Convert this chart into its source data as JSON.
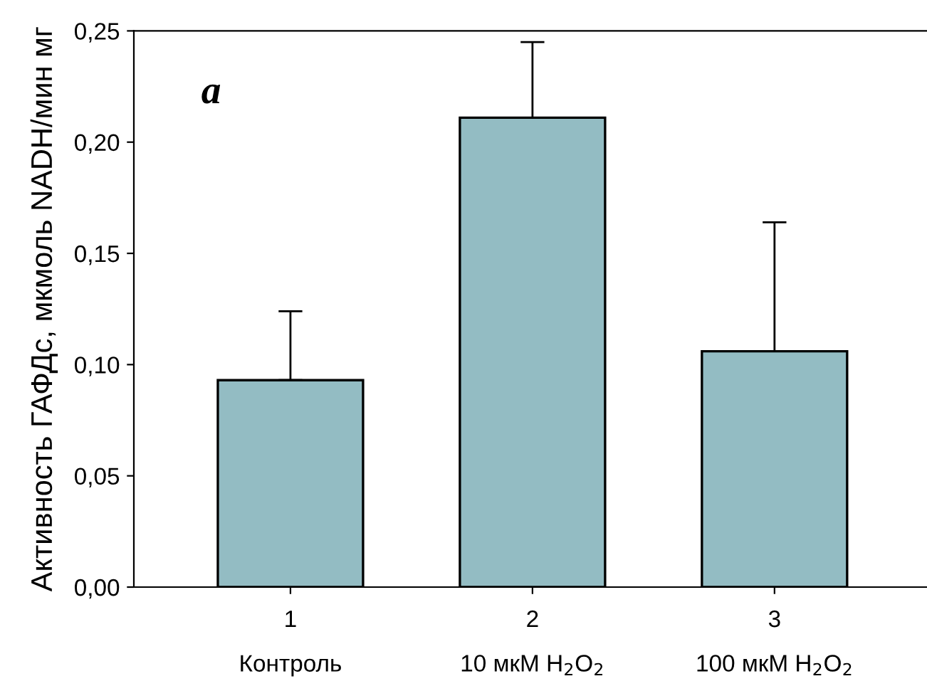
{
  "chart_data": {
    "type": "bar",
    "ylabel": "Активность ГАФДс, мкмоль NADH/мин мг",
    "categories": [
      "1\nКонтроль",
      "2\n10 мкМ H$_{2}$O$_{2}$",
      "3\n100 мкМ H$_{2}$O$_{2}$"
    ],
    "values": [
      0.093,
      0.211,
      0.106
    ],
    "errors": [
      [
        0.093,
        0.124
      ],
      [
        0.211,
        0.245
      ],
      [
        0.106,
        0.164
      ]
    ],
    "color": "#93bcc3",
    "ylim": [
      0,
      0.25
    ],
    "yticks": [
      {
        "value": 0,
        "label": "0,00"
      },
      {
        "value": 0.05,
        "label": "0,05"
      },
      {
        "value": 0.1,
        "label": "0,10"
      },
      {
        "value": 0.15,
        "label": "0,15"
      },
      {
        "value": 0.2,
        "label": "0,20"
      },
      {
        "value": 0.25,
        "label": "0,25"
      }
    ],
    "annotations": [
      "a"
    ],
    "grid": false,
    "legend": false
  }
}
